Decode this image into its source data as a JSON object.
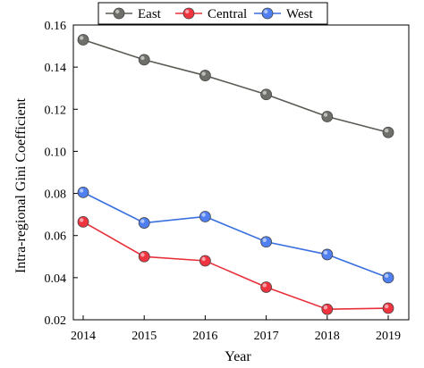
{
  "chart_data": {
    "type": "line",
    "title": "",
    "xlabel": "Year",
    "ylabel": "Intra-regional Gini Coefficient",
    "categories": [
      "2014",
      "2015",
      "2016",
      "2017",
      "2018",
      "2019"
    ],
    "ylim": [
      0.02,
      0.16
    ],
    "yticks": [
      "0.02",
      "0.04",
      "0.06",
      "0.08",
      "0.10",
      "0.12",
      "0.14",
      "0.16"
    ],
    "grid": false,
    "legend_position": "top",
    "series": [
      {
        "name": "East",
        "color": "#5a5a55",
        "marker_color": "#6f6f6a",
        "values": [
          0.153,
          0.1435,
          0.136,
          0.127,
          0.1165,
          0.109
        ]
      },
      {
        "name": "Central",
        "color": "#e8303a",
        "marker_color": "#ef3440",
        "values": [
          0.0665,
          0.05,
          0.048,
          0.0355,
          0.025,
          0.0255
        ]
      },
      {
        "name": "West",
        "color": "#3a6fe0",
        "marker_color": "#4f7ff0",
        "values": [
          0.0805,
          0.066,
          0.069,
          0.057,
          0.051,
          0.04
        ]
      }
    ]
  }
}
